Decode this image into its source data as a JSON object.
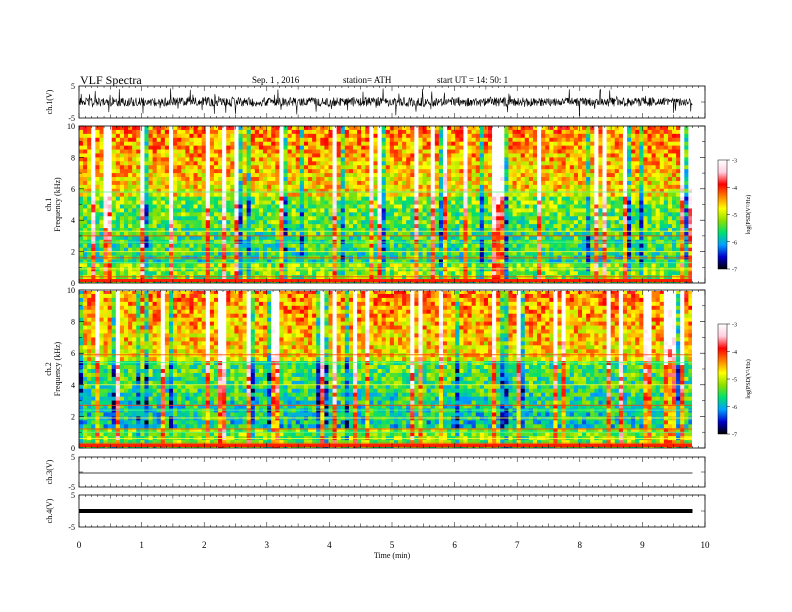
{
  "header": {
    "title": "VLF  Spectra",
    "date": "Sep. 1  , 2016",
    "station": "station= ATH",
    "start": "start  UT  =    14: 50: 1"
  },
  "colors": {
    "scale": [
      "#000000",
      "#0000cc",
      "#00a0ff",
      "#00e070",
      "#8ce000",
      "#ffff00",
      "#ff8000",
      "#ff0000",
      "#ffd0e0",
      "#ffffff"
    ]
  },
  "chart_data": [
    {
      "type": "line",
      "name_label": "ch.1(V)",
      "ylim": [
        -5,
        5
      ],
      "yticks": [
        "5",
        "-5"
      ],
      "xlim": [
        0,
        10
      ],
      "description_of_values": "broadband waveform noise, amplitude roughly ±2 V"
    },
    {
      "type": "heatmap",
      "ylabel": "ch.1\nFrequency  (kHz)",
      "ylabel_line1": "ch.1",
      "ylabel_line2": "Frequency  (kHz)",
      "ylim": [
        0,
        10
      ],
      "yticks": [
        "0",
        "2",
        "4",
        "6",
        "8",
        "10"
      ],
      "xlim": [
        0,
        10
      ],
      "colorbar": {
        "label": "log(PSD(V²/Hz)",
        "range": [
          -7,
          -3
        ],
        "ticks": [
          "-3",
          "-4",
          "-5",
          "-6",
          "-7"
        ]
      }
    },
    {
      "type": "heatmap",
      "ylabel_line1": "ch.2",
      "ylabel_line2": "Frequency  (kHz)",
      "ylim": [
        0,
        10
      ],
      "yticks": [
        "0",
        "2",
        "4",
        "6",
        "8",
        "10"
      ],
      "xlim": [
        0,
        10
      ],
      "colorbar": {
        "label": "log(PSD(V²/Hz)",
        "range": [
          -7,
          -3
        ],
        "ticks": [
          "-3",
          "-4",
          "-5",
          "-6",
          "-7"
        ]
      }
    },
    {
      "type": "line",
      "name_label": "ch.3(V)",
      "ylim": [
        -5,
        5
      ],
      "yticks": [
        "5",
        "-5"
      ],
      "xlim": [
        0,
        10
      ]
    },
    {
      "type": "line",
      "name_label": "ch.4(V)",
      "ylim": [
        -5,
        5
      ],
      "yticks": [
        "5",
        "-5"
      ],
      "xlim": [
        0,
        10
      ]
    }
  ],
  "xaxis": {
    "label": "Time  (min)",
    "ticks": [
      "0",
      "1",
      "2",
      "3",
      "4",
      "5",
      "6",
      "7",
      "8",
      "9",
      "10"
    ]
  }
}
